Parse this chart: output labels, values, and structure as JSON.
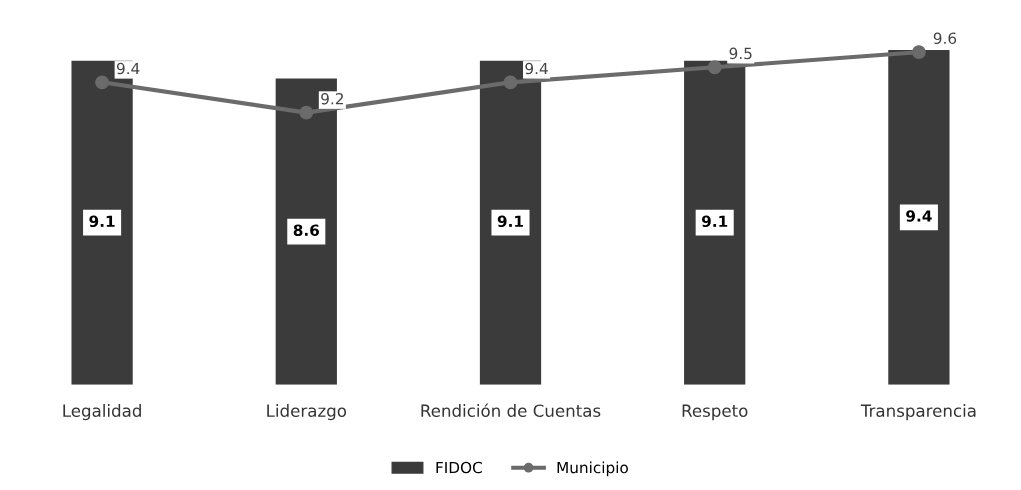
{
  "chart_data": {
    "type": "bar",
    "categories": [
      "Legalidad",
      "Liderazgo",
      "Rendición de Cuentas",
      "Respeto",
      "Transparencia"
    ],
    "series": [
      {
        "name": "FIDOC",
        "color": "#3b3b3b",
        "values": [
          9.1,
          8.6,
          9.1,
          9.1,
          9.4
        ]
      },
      {
        "name": "Municipio",
        "type": "line",
        "axis": "y2",
        "color": "#6b6b6b",
        "values": [
          9.4,
          9.2,
          9.4,
          9.5,
          9.6
        ]
      }
    ],
    "tick_labels": "x",
    "data_labels": true,
    "marker": "circle",
    "line_style": "solid",
    "grid": false,
    "legend": "bottom"
  }
}
